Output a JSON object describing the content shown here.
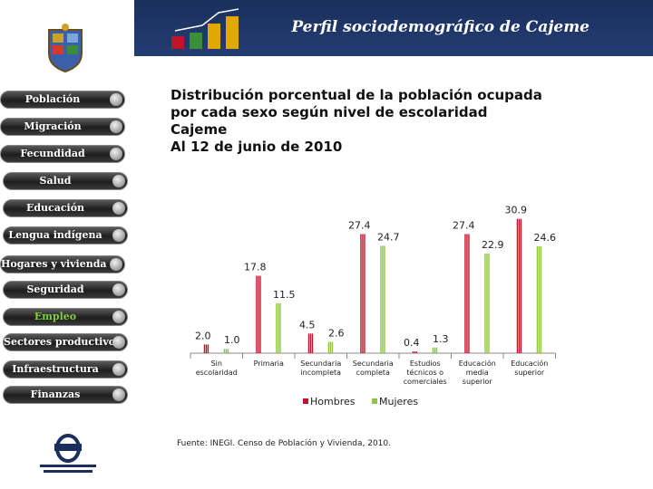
{
  "header": {
    "title": "Perfil sociodemográfico de Cajeme"
  },
  "nav": {
    "items": [
      {
        "label": "Población",
        "active": false
      },
      {
        "label": "Migración",
        "active": false
      },
      {
        "label": "Fecundidad",
        "active": false
      },
      {
        "label": "Salud",
        "active": false
      },
      {
        "label": "Educación",
        "active": false
      },
      {
        "label": "Lengua indígena",
        "active": false
      },
      {
        "label": "Hogares y vivienda",
        "active": false
      },
      {
        "label": "Seguridad",
        "active": false
      },
      {
        "label": "Empleo",
        "active": true
      },
      {
        "label": "Sectores productivos",
        "active": false
      },
      {
        "label": "Infraestructura",
        "active": false
      },
      {
        "label": "Finanzas",
        "active": false
      }
    ]
  },
  "title_lines": [
    "Distribución porcentual de la población ocupada",
    "por cada sexo según nivel de escolaridad",
    "Cajeme",
    "Al 12 de junio de 2010"
  ],
  "colors": {
    "hombres": "#c0142a",
    "mujeres": "#8cc63f",
    "header": "#1a2f5c",
    "active_nav": "#7fd13b"
  },
  "chart_data": {
    "type": "bar",
    "title": "Distribución porcentual de la población ocupada por cada sexo según nivel de escolaridad",
    "categories": [
      [
        "Sin",
        "escolaridad"
      ],
      [
        "Primaria"
      ],
      [
        "Secundaria",
        "incompleta"
      ],
      [
        "Secundaria",
        "completa"
      ],
      [
        "Estudios",
        "técnicos o",
        "comerciales"
      ],
      [
        "Educación",
        "media",
        "superior"
      ],
      [
        "Educación",
        "superior"
      ]
    ],
    "series": [
      {
        "name": "Hombres",
        "values": [
          "2.0",
          "17.8",
          "4.5",
          "27.4",
          "0.4",
          "27.4",
          "30.9"
        ]
      },
      {
        "name": "Mujeres",
        "values": [
          "1.0",
          "11.5",
          "2.6",
          "24.7",
          "1.3",
          "22.9",
          "24.6"
        ]
      }
    ],
    "ylim": [
      0,
      32
    ],
    "legend_position": "bottom",
    "grid": false
  },
  "source": "Fuente: INEGI. Censo de Población y Vivienda, 2010."
}
